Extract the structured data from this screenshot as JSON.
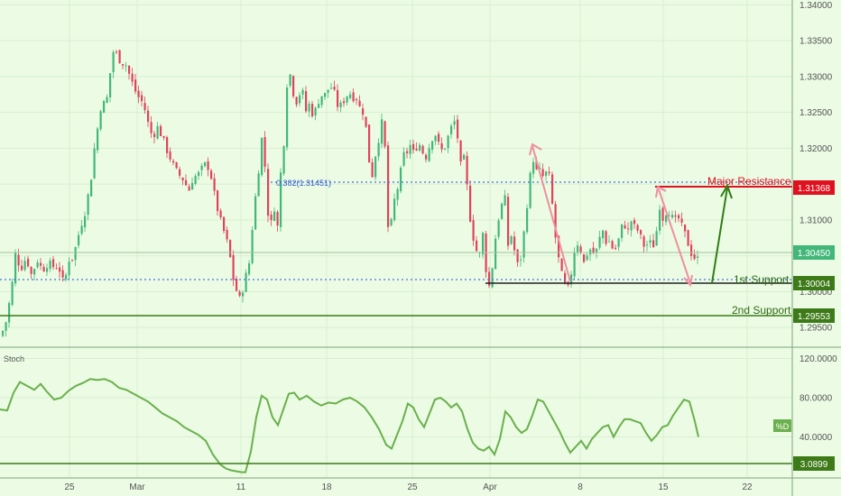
{
  "colors": {
    "background": "#ebfbe4",
    "grid": "#d9efd2",
    "up_candle": "#43b77a",
    "down_candle": "#e0435a",
    "fib_line": "#4a73e0",
    "support_line": "#3d7a18",
    "resistance": "#e0101e",
    "stoch_line": "#6ab04c",
    "axis_text": "#555555",
    "pink_arrow": "#ef8fa0",
    "green_arrow": "#2f7d14"
  },
  "chart_data": [
    {
      "type": "candlestick",
      "title": "",
      "x_tick_labels": [
        "25",
        "Mar",
        "11",
        "18",
        "25",
        "Apr",
        "8",
        "15",
        "22"
      ],
      "y_tick_labels": [
        "1.34000",
        "1.33500",
        "1.33000",
        "1.32500",
        "1.32000",
        "1.31500",
        "1.31000",
        "1.30500",
        "1.30000",
        "1.29500"
      ],
      "ylim": [
        1.2925,
        1.3403
      ],
      "grid": true,
      "close_path": [
        [
          0,
          1.2938
        ],
        [
          6,
          1.296
        ],
        [
          12,
          1.3006
        ],
        [
          16,
          1.3052
        ],
        [
          22,
          1.3032
        ],
        [
          28,
          1.3048
        ],
        [
          34,
          1.3022
        ],
        [
          40,
          1.3045
        ],
        [
          46,
          1.303
        ],
        [
          52,
          1.304
        ],
        [
          58,
          1.3035
        ],
        [
          64,
          1.3035
        ],
        [
          70,
          1.3008
        ],
        [
          75,
          1.3045
        ],
        [
          80,
          1.3048
        ],
        [
          88,
          1.309
        ],
        [
          94,
          1.3115
        ],
        [
          100,
          1.316
        ],
        [
          104,
          1.3205
        ],
        [
          108,
          1.3235
        ],
        [
          112,
          1.327
        ],
        [
          116,
          1.3255
        ],
        [
          120,
          1.3295
        ],
        [
          124,
          1.3335
        ],
        [
          128,
          1.3332
        ],
        [
          133,
          1.332
        ],
        [
          138,
          1.3318
        ],
        [
          143,
          1.33
        ],
        [
          148,
          1.3282
        ],
        [
          153,
          1.327
        ],
        [
          158,
          1.3262
        ],
        [
          163,
          1.3235
        ],
        [
          168,
          1.3215
        ],
        [
          173,
          1.323
        ],
        [
          178,
          1.3218
        ],
        [
          183,
          1.32
        ],
        [
          188,
          1.3185
        ],
        [
          193,
          1.317
        ],
        [
          198,
          1.3162
        ],
        [
          203,
          1.3155
        ],
        [
          208,
          1.314
        ],
        [
          213,
          1.316
        ],
        [
          218,
          1.3162
        ],
        [
          223,
          1.3172
        ],
        [
          228,
          1.318
        ],
        [
          233,
          1.316
        ],
        [
          238,
          1.3125
        ],
        [
          243,
          1.31
        ],
        [
          248,
          1.308
        ],
        [
          253,
          1.3058
        ],
        [
          256,
          1.3025
        ],
        [
          260,
          1.3005
        ],
        [
          265,
          1.2988
        ],
        [
          270,
          1.3015
        ],
        [
          275,
          1.304
        ],
        [
          280,
          1.311
        ],
        [
          285,
          1.3165
        ],
        [
          290,
          1.3225
        ],
        [
          294,
          1.3145
        ],
        [
          298,
          1.3075
        ],
        [
          302,
          1.313
        ],
        [
          306,
          1.308
        ],
        [
          310,
          1.3165
        ],
        [
          314,
          1.3215
        ],
        [
          318,
          1.3315
        ],
        [
          322,
          1.3295
        ],
        [
          326,
          1.326
        ],
        [
          330,
          1.3275
        ],
        [
          334,
          1.328
        ],
        [
          338,
          1.3252
        ],
        [
          342,
          1.3262
        ],
        [
          346,
          1.3245
        ],
        [
          350,
          1.3258
        ],
        [
          354,
          1.3275
        ],
        [
          358,
          1.3272
        ],
        [
          362,
          1.3282
        ],
        [
          366,
          1.3285
        ],
        [
          370,
          1.3275
        ],
        [
          374,
          1.3255
        ],
        [
          378,
          1.3262
        ],
        [
          382,
          1.3272
        ],
        [
          386,
          1.3278
        ],
        [
          390,
          1.3272
        ],
        [
          394,
          1.327
        ],
        [
          398,
          1.3255
        ],
        [
          402,
          1.325
        ],
        [
          406,
          1.3215
        ],
        [
          410,
          1.315
        ],
        [
          414,
          1.3185
        ],
        [
          418,
          1.321
        ],
        [
          422,
          1.3235
        ],
        [
          426,
          1.3195
        ],
        [
          430,
          1.3055
        ],
        [
          434,
          1.312
        ],
        [
          438,
          1.3135
        ],
        [
          442,
          1.316
        ],
        [
          446,
          1.319
        ],
        [
          450,
          1.3195
        ],
        [
          454,
          1.3205
        ],
        [
          458,
          1.319
        ],
        [
          462,
          1.321
        ],
        [
          466,
          1.32
        ],
        [
          470,
          1.3185
        ],
        [
          474,
          1.32
        ],
        [
          478,
          1.3215
        ],
        [
          482,
          1.322
        ],
        [
          486,
          1.32
        ],
        [
          490,
          1.3195
        ],
        [
          494,
          1.321
        ],
        [
          498,
          1.3225
        ],
        [
          502,
          1.324
        ],
        [
          506,
          1.3215
        ],
        [
          510,
          1.317
        ],
        [
          514,
          1.319
        ],
        [
          518,
          1.312
        ],
        [
          522,
          1.3085
        ],
        [
          526,
          1.306
        ],
        [
          530,
          1.3048
        ],
        [
          534,
          1.308
        ],
        [
          538,
          1.3025
        ],
        [
          542,
          1.3002
        ],
        [
          546,
          1.3055
        ],
        [
          550,
          1.3095
        ],
        [
          554,
          1.3115
        ],
        [
          558,
          1.3138
        ],
        [
          562,
          1.3065
        ],
        [
          566,
          1.308
        ],
        [
          570,
          1.305
        ],
        [
          574,
          1.303
        ],
        [
          578,
          1.3065
        ],
        [
          582,
          1.311
        ],
        [
          586,
          1.3158
        ],
        [
          590,
          1.3185
        ],
        [
          594,
          1.3165
        ],
        [
          598,
          1.317
        ],
        [
          602,
          1.3155
        ],
        [
          606,
          1.3175
        ],
        [
          610,
          1.3135
        ],
        [
          614,
          1.308
        ],
        [
          618,
          1.3045
        ],
        [
          622,
          1.302
        ],
        [
          626,
          1.3005
        ],
        [
          630,
          1.3003
        ],
        [
          634,
          1.305
        ],
        [
          638,
          1.307
        ],
        [
          642,
          1.306
        ],
        [
          646,
          1.304
        ],
        [
          650,
          1.3055
        ],
        [
          654,
          1.306
        ],
        [
          658,
          1.305
        ],
        [
          662,
          1.3065
        ],
        [
          666,
          1.309
        ],
        [
          670,
          1.307
        ],
        [
          674,
          1.307
        ],
        [
          678,
          1.306
        ],
        [
          682,
          1.306
        ],
        [
          686,
          1.308
        ],
        [
          690,
          1.31
        ],
        [
          694,
          1.308
        ],
        [
          698,
          1.31
        ],
        [
          702,
          1.309
        ],
        [
          706,
          1.3085
        ],
        [
          710,
          1.3072
        ],
        [
          714,
          1.306
        ],
        [
          718,
          1.3072
        ],
        [
          722,
          1.306
        ],
        [
          726,
          1.308
        ],
        [
          730,
          1.312
        ],
        [
          734,
          1.31
        ],
        [
          738,
          1.3115
        ],
        [
          742,
          1.311
        ],
        [
          746,
          1.3095
        ],
        [
          750,
          1.3105
        ],
        [
          754,
          1.3092
        ],
        [
          758,
          1.308
        ],
        [
          762,
          1.3065
        ],
        [
          766,
          1.305
        ],
        [
          770,
          1.3046
        ],
        [
          773,
          1.3045
        ]
      ],
      "reference_lines": [
        {
          "label": "0.382(1.31451)",
          "value": 1.31451,
          "style": "dotted"
        },
        {
          "label": "1st Support",
          "value": 1.30004,
          "style": "dotted",
          "badge": "1.30004"
        },
        {
          "label": "2nd Support",
          "value": 1.29553,
          "style": "solid",
          "badge": "1.29553"
        },
        {
          "label": "Major Resistance",
          "value": 1.31368,
          "style": "solid",
          "badge": "1.31368"
        },
        {
          "label": "",
          "value": 1.3045,
          "style": "solid",
          "badge": "1.30450"
        }
      ]
    },
    {
      "type": "line",
      "title": "Stoch",
      "y_tick_labels": [
        "120.0000",
        "80.0000",
        "40.0000"
      ],
      "ylim": [
        0,
        125
      ],
      "reference_line": {
        "value": 3.0899,
        "badge": "3.0899"
      },
      "series_label": "%D",
      "path": [
        [
          0,
          68
        ],
        [
          8,
          67
        ],
        [
          15,
          85
        ],
        [
          22,
          96
        ],
        [
          30,
          92
        ],
        [
          38,
          88
        ],
        [
          45,
          94
        ],
        [
          52,
          86
        ],
        [
          60,
          78
        ],
        [
          68,
          80
        ],
        [
          76,
          87
        ],
        [
          84,
          92
        ],
        [
          92,
          95
        ],
        [
          100,
          99
        ],
        [
          108,
          98
        ],
        [
          116,
          99
        ],
        [
          124,
          96
        ],
        [
          132,
          90
        ],
        [
          140,
          88
        ],
        [
          148,
          84
        ],
        [
          156,
          80
        ],
        [
          164,
          76
        ],
        [
          172,
          70
        ],
        [
          180,
          64
        ],
        [
          188,
          60
        ],
        [
          196,
          56
        ],
        [
          204,
          50
        ],
        [
          212,
          46
        ],
        [
          220,
          42
        ],
        [
          228,
          36
        ],
        [
          236,
          22
        ],
        [
          244,
          12
        ],
        [
          250,
          8
        ],
        [
          256,
          6
        ],
        [
          262,
          5
        ],
        [
          268,
          4
        ],
        [
          272,
          4
        ],
        [
          278,
          25
        ],
        [
          284,
          60
        ],
        [
          290,
          82
        ],
        [
          296,
          78
        ],
        [
          302,
          60
        ],
        [
          308,
          52
        ],
        [
          314,
          68
        ],
        [
          320,
          84
        ],
        [
          326,
          85
        ],
        [
          332,
          78
        ],
        [
          340,
          82
        ],
        [
          348,
          76
        ],
        [
          356,
          72
        ],
        [
          364,
          75
        ],
        [
          372,
          74
        ],
        [
          380,
          78
        ],
        [
          388,
          80
        ],
        [
          396,
          76
        ],
        [
          404,
          70
        ],
        [
          412,
          60
        ],
        [
          420,
          48
        ],
        [
          428,
          32
        ],
        [
          434,
          28
        ],
        [
          440,
          42
        ],
        [
          446,
          56
        ],
        [
          452,
          74
        ],
        [
          458,
          70
        ],
        [
          464,
          58
        ],
        [
          470,
          50
        ],
        [
          476,
          64
        ],
        [
          482,
          78
        ],
        [
          488,
          80
        ],
        [
          494,
          76
        ],
        [
          500,
          70
        ],
        [
          506,
          74
        ],
        [
          512,
          66
        ],
        [
          518,
          48
        ],
        [
          524,
          34
        ],
        [
          530,
          28
        ],
        [
          536,
          26
        ],
        [
          542,
          30
        ],
        [
          548,
          22
        ],
        [
          554,
          38
        ],
        [
          560,
          66
        ],
        [
          566,
          60
        ],
        [
          572,
          50
        ],
        [
          578,
          44
        ],
        [
          584,
          48
        ],
        [
          590,
          62
        ],
        [
          596,
          78
        ],
        [
          602,
          76
        ],
        [
          608,
          66
        ],
        [
          614,
          56
        ],
        [
          620,
          46
        ],
        [
          626,
          34
        ],
        [
          632,
          24
        ],
        [
          638,
          30
        ],
        [
          644,
          36
        ],
        [
          650,
          28
        ],
        [
          656,
          38
        ],
        [
          662,
          44
        ],
        [
          668,
          50
        ],
        [
          674,
          52
        ],
        [
          680,
          40
        ],
        [
          686,
          50
        ],
        [
          692,
          58
        ],
        [
          698,
          58
        ],
        [
          704,
          56
        ],
        [
          710,
          54
        ],
        [
          716,
          44
        ],
        [
          722,
          36
        ],
        [
          728,
          42
        ],
        [
          734,
          50
        ],
        [
          740,
          52
        ],
        [
          746,
          62
        ],
        [
          752,
          70
        ],
        [
          758,
          78
        ],
        [
          764,
          76
        ],
        [
          770,
          56
        ],
        [
          774,
          40
        ]
      ]
    }
  ],
  "labels": {
    "major_resistance": "Major Resistance",
    "first_support": "1st Support",
    "second_support": "2nd Support",
    "fib": "0.382(1.31451)",
    "stoch_title": "Stoch",
    "stoch_series": "%D"
  },
  "badges": {
    "resistance": "1.31368",
    "last_price": "1.30450",
    "first_support": "1.30004",
    "second_support": "1.29553",
    "stoch_ref": "3.0899"
  }
}
